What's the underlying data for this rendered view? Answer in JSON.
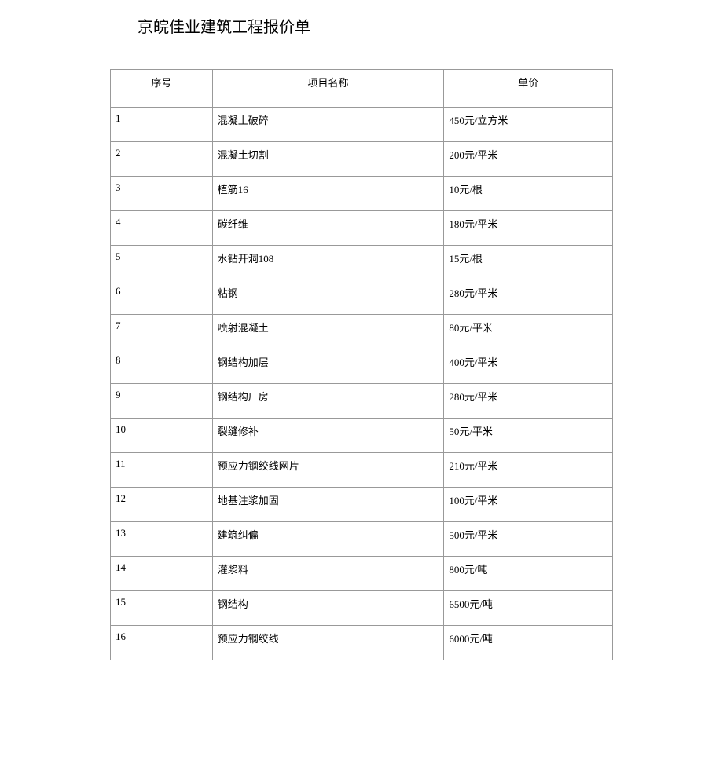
{
  "title": "京皖佳业建筑工程报价单",
  "table": {
    "columns": {
      "seq": "序号",
      "name": "项目名称",
      "price": "单价"
    },
    "rows": [
      {
        "seq": "1",
        "name": "混凝土破碎",
        "price": "450元/立方米"
      },
      {
        "seq": "2",
        "name": "混凝土切割",
        "price": "200元/平米"
      },
      {
        "seq": "3",
        "name": "植筋16",
        "price": "10元/根"
      },
      {
        "seq": "4",
        "name": "碳纤维",
        "price": "180元/平米"
      },
      {
        "seq": "5",
        "name": "水钻开洞108",
        "price": "15元/根"
      },
      {
        "seq": "6",
        "name": "粘钢",
        "price": "280元/平米"
      },
      {
        "seq": "7",
        "name": "喷射混凝土",
        "price": "80元/平米"
      },
      {
        "seq": "8",
        "name": "钢结构加层",
        "price": "400元/平米"
      },
      {
        "seq": "9",
        "name": "钢结构厂房",
        "price": "280元/平米"
      },
      {
        "seq": "10",
        "name": "裂缝修补",
        "price": "50元/平米"
      },
      {
        "seq": "11",
        "name": "预应力钢绞线网片",
        "price": "210元/平米"
      },
      {
        "seq": "12",
        "name": "地基注浆加固",
        "price": "100元/平米"
      },
      {
        "seq": "13",
        "name": "建筑纠偏",
        "price": "500元/平米"
      },
      {
        "seq": "14",
        "name": "灌浆料",
        "price": "800元/吨"
      },
      {
        "seq": "15",
        "name": "钢结构",
        "price": "6500元/吨"
      },
      {
        "seq": "16",
        "name": "预应力钢绞线",
        "price": "6000元/吨"
      }
    ]
  },
  "style": {
    "background_color": "#ffffff",
    "border_color": "#999999",
    "text_color": "#000000",
    "title_fontsize": 20,
    "cell_fontsize": 13,
    "col_widths": {
      "seq": 130,
      "name": 295,
      "price": 215
    }
  }
}
